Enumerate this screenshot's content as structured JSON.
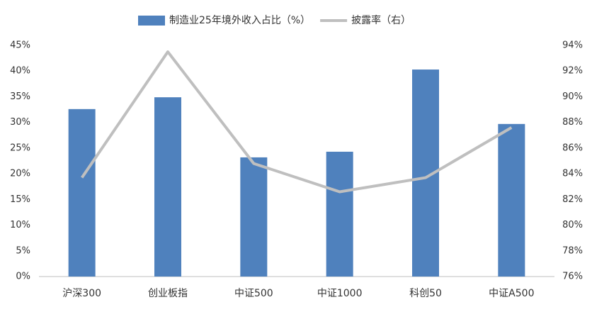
{
  "chart_data": {
    "type": "bar-line",
    "categories": [
      "沪深300",
      "创业板指",
      "中证500",
      "中证1000",
      "科创50",
      "中证A500"
    ],
    "series": [
      {
        "name": "制造业25年境外收入占比（%）",
        "color": "#4f81bd",
        "type": "bar",
        "values": [
          32.6,
          34.9,
          23.2,
          24.3,
          40.3,
          29.7
        ]
      },
      {
        "name": "披露率（右）",
        "color": "#bfbfbf",
        "type": "line",
        "axis": "y2",
        "values": [
          83.7,
          93.5,
          84.8,
          82.6,
          83.7,
          87.6
        ]
      }
    ],
    "ylim": [
      0,
      45
    ],
    "yticks": [
      {
        "value": 0,
        "label": "0%"
      },
      {
        "value": 5,
        "label": "5%"
      },
      {
        "value": 10,
        "label": "10%"
      },
      {
        "value": 15,
        "label": "15%"
      },
      {
        "value": 20,
        "label": "20%"
      },
      {
        "value": 25,
        "label": "25%"
      },
      {
        "value": 30,
        "label": "30%"
      },
      {
        "value": 35,
        "label": "35%"
      },
      {
        "value": 40,
        "label": "40%"
      },
      {
        "value": 45,
        "label": "45%"
      }
    ],
    "y2lim": [
      76,
      94
    ],
    "y2ticks": [
      {
        "value": 76,
        "label": "76%"
      },
      {
        "value": 78,
        "label": "78%"
      },
      {
        "value": 80,
        "label": "80%"
      },
      {
        "value": 82,
        "label": "82%"
      },
      {
        "value": 84,
        "label": "84%"
      },
      {
        "value": 86,
        "label": "86%"
      },
      {
        "value": 88,
        "label": "88%"
      },
      {
        "value": 90,
        "label": "90%"
      },
      {
        "value": 92,
        "label": "92%"
      },
      {
        "value": 94,
        "label": "94%"
      }
    ],
    "legend": "top"
  }
}
